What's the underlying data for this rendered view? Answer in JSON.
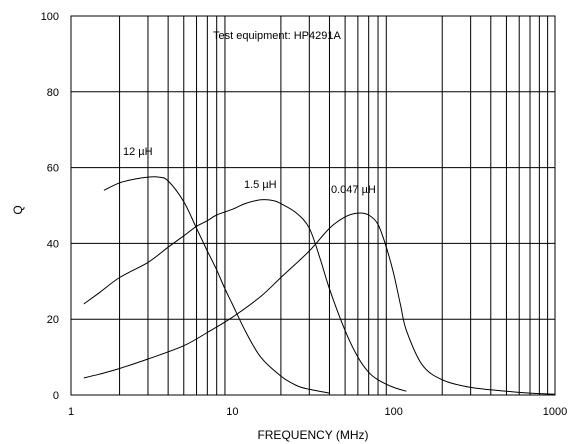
{
  "chart_data": {
    "type": "line",
    "title": "",
    "xlabel": "FREQUENCY (MHz)",
    "ylabel": "Q",
    "x_scale": "log",
    "xlim": [
      1,
      1000
    ],
    "ylim": [
      0,
      100
    ],
    "x_ticks": [
      1,
      10,
      100,
      1000
    ],
    "y_ticks": [
      0,
      20,
      40,
      60,
      80,
      100
    ],
    "grid": true,
    "annotation": "Test equipment: HP4291A",
    "series": [
      {
        "name": "12 µH",
        "x": [
          1.6,
          2.0,
          2.5,
          3.0,
          3.5,
          4.0,
          5.0,
          6.0,
          7.0,
          8.0,
          9.0,
          10.0,
          12.0,
          15.0,
          20.0,
          25.0,
          30.0,
          40.0
        ],
        "y": [
          54,
          56,
          57,
          57.5,
          57.5,
          56.5,
          51,
          44,
          38,
          33,
          28,
          24,
          17,
          10,
          5,
          2.5,
          1.5,
          0.5
        ]
      },
      {
        "name": "1.5 µH",
        "x": [
          1.2,
          1.5,
          2.0,
          3.0,
          4.0,
          5.0,
          6.0,
          7.0,
          8.0,
          10.0,
          12.0,
          15.0,
          18.0,
          20.0,
          25.0,
          30.0,
          35.0,
          40.0,
          50.0,
          60.0,
          70.0,
          80.0,
          100.0,
          120.0
        ],
        "y": [
          24,
          27,
          31,
          35,
          39,
          42,
          44.5,
          46,
          47.5,
          49,
          50.5,
          51.5,
          51.3,
          50.5,
          48,
          44,
          36,
          28,
          17,
          10,
          6,
          4,
          2,
          1
        ]
      },
      {
        "name": "0.047 µH",
        "x": [
          1.2,
          1.5,
          2.0,
          3.0,
          5.0,
          7.0,
          10.0,
          15.0,
          20.0,
          30.0,
          40.0,
          50.0,
          60.0,
          70.0,
          80.0,
          90.0,
          100.0,
          110.0,
          120.0,
          150.0,
          200.0,
          300.0,
          500.0,
          700.0,
          1000.0
        ],
        "y": [
          4.5,
          5.5,
          7,
          9.5,
          13,
          16.5,
          20.5,
          26,
          31,
          38,
          44,
          47,
          48,
          47.5,
          45,
          39,
          32,
          24,
          17,
          8,
          4,
          2,
          1,
          0.5,
          0.2
        ]
      }
    ],
    "series_labels": [
      {
        "text": "12 µH",
        "series": 0
      },
      {
        "text": "1.5 µH",
        "series": 1
      },
      {
        "text": "0.047 µH",
        "series": 2
      }
    ]
  }
}
